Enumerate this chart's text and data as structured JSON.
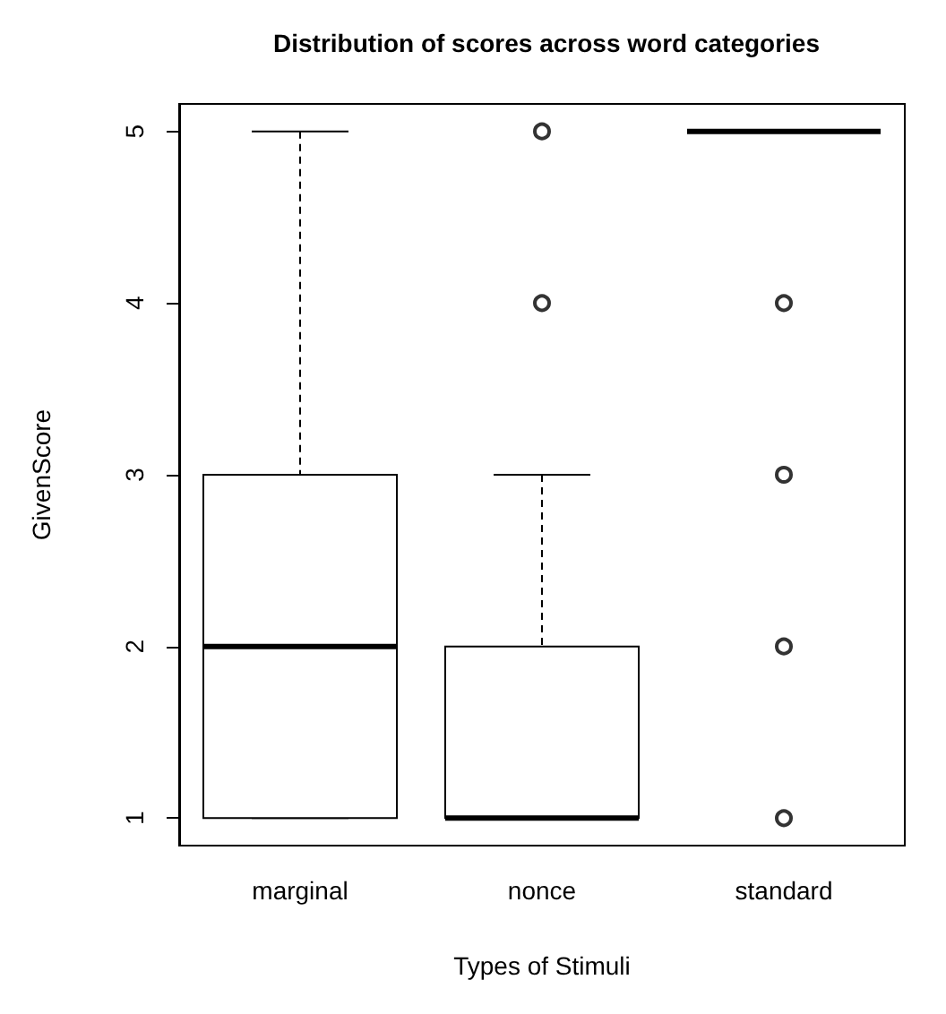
{
  "chart_data": {
    "type": "box",
    "title": "Distribution of scores across word categories",
    "xlabel": "Types of Stimuli",
    "ylabel": "GivenScore",
    "categories": [
      "marginal",
      "nonce",
      "standard"
    ],
    "boxes": [
      {
        "low": 1,
        "q1": 1,
        "median": 2,
        "q3": 3,
        "high": 5
      },
      {
        "low": 1,
        "q1": 1,
        "median": 1,
        "q3": 2,
        "high": 3,
        "outliers": [
          4,
          5
        ]
      },
      {
        "low": 5,
        "q1": 5,
        "median": 5,
        "q3": 5,
        "high": 5,
        "outliers": [
          1,
          2,
          3,
          4
        ]
      }
    ],
    "color": "#000000",
    "ylim": [
      0.84,
      5.16
    ],
    "yticks": [
      1,
      2,
      3,
      4,
      5
    ],
    "grid": false
  }
}
